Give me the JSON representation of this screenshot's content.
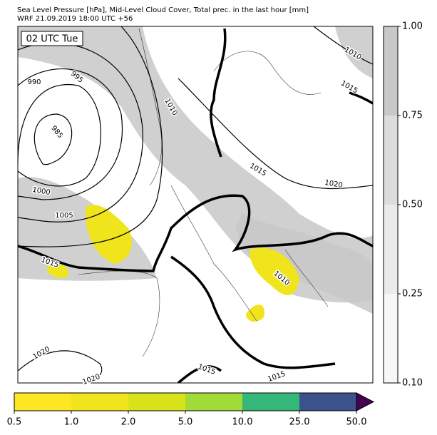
{
  "header": {
    "title": "Sea Level Pressure [hPa], Mid-Level Cloud Cover, Total prec. in the last hour [mm]",
    "subtitle": "WRF 21.09.2019 18:00 UTC +56"
  },
  "map": {
    "time_label": "02 UTC Tue",
    "isobar_labels": [
      "1010",
      "1015",
      "995",
      "990",
      "1010",
      "985",
      "1015",
      "1020",
      "1000",
      "1005",
      "1015",
      "1010",
      "1020",
      "1015",
      "1020",
      "1015"
    ]
  },
  "cloud_colorbar": {
    "ticks": [
      {
        "value": 0.1,
        "label": "0.10"
      },
      {
        "value": 0.25,
        "label": "0.25"
      },
      {
        "value": 0.5,
        "label": "0.50"
      },
      {
        "value": 0.75,
        "label": "0.75"
      },
      {
        "value": 1.0,
        "label": "1.00"
      }
    ],
    "colors": [
      "#f7f7f7",
      "#ebebeb",
      "#dcdcdc",
      "#c8c8c8"
    ]
  },
  "precip_colorbar": {
    "ticks": [
      0.5,
      {
        "value": 1.0,
        "label": "1.0"
      },
      {
        "value": 2.0,
        "label": "2.0"
      },
      {
        "value": 5.0,
        "label": "5.0"
      },
      {
        "value": 10.0,
        "label": "10.0"
      },
      {
        "value": 25.0,
        "label": "25.0"
      },
      {
        "value": 50.0,
        "label": "50.0"
      }
    ],
    "colors": [
      "#fde725",
      "#f0e51c",
      "#d8e219",
      "#a2da37",
      "#35b779",
      "#3b528b"
    ],
    "extend_color": "#440154"
  }
}
